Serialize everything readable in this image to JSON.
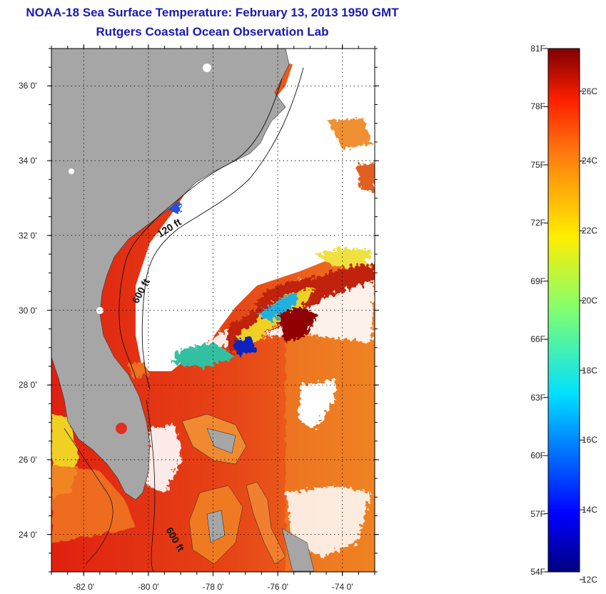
{
  "title": {
    "line1": "NOAA-18 Sea Surface Temperature:  February 13, 2013 1950 GMT",
    "line2": "Rutgers Coastal Ocean Observation Lab"
  },
  "map": {
    "lat_ticks": [
      {
        "value": 36,
        "label": "36 0'"
      },
      {
        "value": 34,
        "label": "34 0'"
      },
      {
        "value": 32,
        "label": "32 0'"
      },
      {
        "value": 30,
        "label": "30 0'"
      },
      {
        "value": 28,
        "label": "28 0'"
      },
      {
        "value": 26,
        "label": "26 0'"
      },
      {
        "value": 24,
        "label": "24 0'"
      }
    ],
    "lon_ticks": [
      {
        "value": -82,
        "label": "-82 0'"
      },
      {
        "value": -80,
        "label": "-80 0'"
      },
      {
        "value": -78,
        "label": "-78 0'"
      },
      {
        "value": -76,
        "label": "-76 0'"
      },
      {
        "value": -74,
        "label": "-74 0'"
      }
    ],
    "lat_range": [
      23,
      37
    ],
    "lon_range": [
      -83,
      -73
    ],
    "contour_labels": {
      "c120": "120 ft",
      "c600a": "600 ft",
      "c600b": "600 ft"
    },
    "colors": {
      "land": "#a6a6a6",
      "cloud": "#ffffff"
    }
  },
  "colorbar": {
    "fahrenheit_labels": [
      "81F",
      "78F",
      "75F",
      "72F",
      "69F",
      "66F",
      "63F",
      "60F",
      "57F",
      "54F"
    ],
    "celsius_labels": [
      "26C",
      "24C",
      "22C",
      "20C",
      "18C",
      "16C",
      "14C",
      "12C"
    ]
  }
}
